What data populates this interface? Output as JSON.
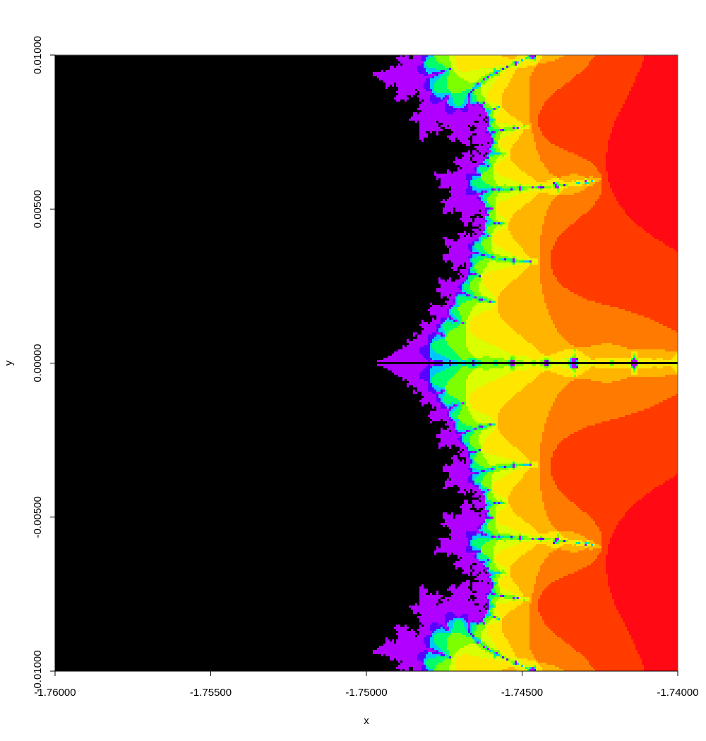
{
  "chart_data": {
    "type": "heatmap",
    "title": "",
    "xlabel": "x",
    "ylabel": "y",
    "xlim": [
      -1.76,
      -1.74
    ],
    "ylim": [
      -0.01,
      0.01
    ],
    "x_ticks": [
      -1.76,
      -1.755,
      -1.75,
      -1.745,
      -1.74
    ],
    "x_tick_labels": [
      "-1.76000",
      "-1.75500",
      "-1.75000",
      "-1.74500",
      "-1.74000"
    ],
    "y_ticks": [
      -0.01,
      -0.005,
      0.0,
      0.005,
      0.01
    ],
    "y_tick_labels": [
      "-0.01000",
      "-0.00500",
      "0.00000",
      "0.00500",
      "0.01000"
    ],
    "grid": false,
    "legend": "none",
    "max_iterations": 80,
    "colors": {
      "inside_set": "#000000",
      "escape_palette": [
        "#ffffff",
        "#ffc9cc",
        "#ffa3a8",
        "#ff7c82",
        "#ff525a",
        "#ff2a33",
        "#ff0a14",
        "#ff3b00",
        "#ff7a00",
        "#ffb400",
        "#ffe600",
        "#d9ff00",
        "#7dff00",
        "#00ff6a",
        "#00c8ff",
        "#5a00ff",
        "#b000ff"
      ]
    }
  }
}
